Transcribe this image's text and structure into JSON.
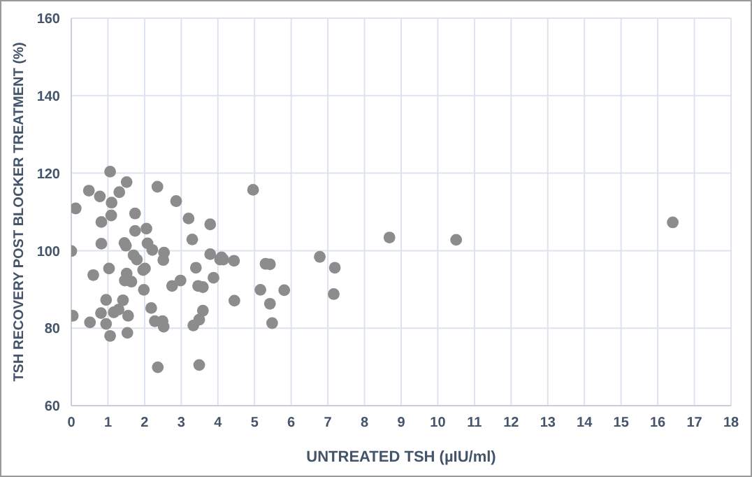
{
  "chart_data": {
    "type": "scatter",
    "xlabel": "UNTREATED TSH (µIU/ml)",
    "ylabel": "TSH RECOVERY POST BLOCKER TREATMENT (%)",
    "xlim": [
      0,
      18
    ],
    "xticks": [
      0,
      1,
      2,
      3,
      4,
      5,
      6,
      7,
      8,
      9,
      10,
      11,
      12,
      13,
      14,
      15,
      16,
      17,
      18
    ],
    "ylim": [
      60,
      160
    ],
    "yticks": [
      60,
      80,
      100,
      120,
      140,
      160
    ],
    "grid": true,
    "marker": "circle",
    "series": [
      {
        "color": "#8c8c8c",
        "x": [
          0,
          0.04,
          0.12,
          0.48,
          0.51,
          0.6,
          0.78,
          0.82,
          0.82,
          0.81,
          0.95,
          0.95,
          1.03,
          1.06,
          1.06,
          1.09,
          1.1,
          1.16,
          1.31,
          1.29,
          1.41,
          1.45,
          1.49,
          1.46,
          1.51,
          1.51,
          1.53,
          1.55,
          1.64,
          1.74,
          1.74,
          1.7,
          1.79,
          1.98,
          1.96,
          2.01,
          2.05,
          2.08,
          2.21,
          2.18,
          2.28,
          2.35,
          2.36,
          2.49,
          2.52,
          2.53,
          2.51,
          2.75,
          2.86,
          2.98,
          3.2,
          3.3,
          3.33,
          3.4,
          3.46,
          3.49,
          3.49,
          3.59,
          3.59,
          3.79,
          3.79,
          3.88,
          4.06,
          4.1,
          4.15,
          4.44,
          4.45,
          4.96,
          5.16,
          5.3,
          5.42,
          5.42,
          5.48,
          5.81,
          6.78,
          7.16,
          7.19,
          8.68,
          10.5,
          16.41
        ],
        "values": [
          99.9,
          83.2,
          110.9,
          115.5,
          81.5,
          93.7,
          114,
          107.4,
          101.8,
          83.9,
          87.3,
          81.1,
          95.4,
          78,
          120.4,
          109.1,
          112.4,
          84.1,
          115.1,
          84.8,
          87.2,
          102,
          101.3,
          92.3,
          117.7,
          94.1,
          78.8,
          83.2,
          92,
          109.6,
          105.1,
          98.8,
          97.7,
          89.9,
          95,
          95.4,
          105.7,
          101.9,
          100.2,
          85.2,
          81.8,
          116.5,
          69.9,
          81.8,
          80.4,
          99.5,
          97.6,
          90.9,
          112.8,
          92.3,
          108.3,
          102.9,
          80.7,
          95.6,
          90.9,
          82.2,
          70.5,
          90.6,
          84.5,
          106.8,
          99.1,
          93,
          97.7,
          98.3,
          97.7,
          97.4,
          87.1,
          115.7,
          89.9,
          96.6,
          96.5,
          86.3,
          81.3,
          89.8,
          98.4,
          88.8,
          95.6,
          103.4,
          102.8,
          107.3
        ]
      }
    ]
  }
}
